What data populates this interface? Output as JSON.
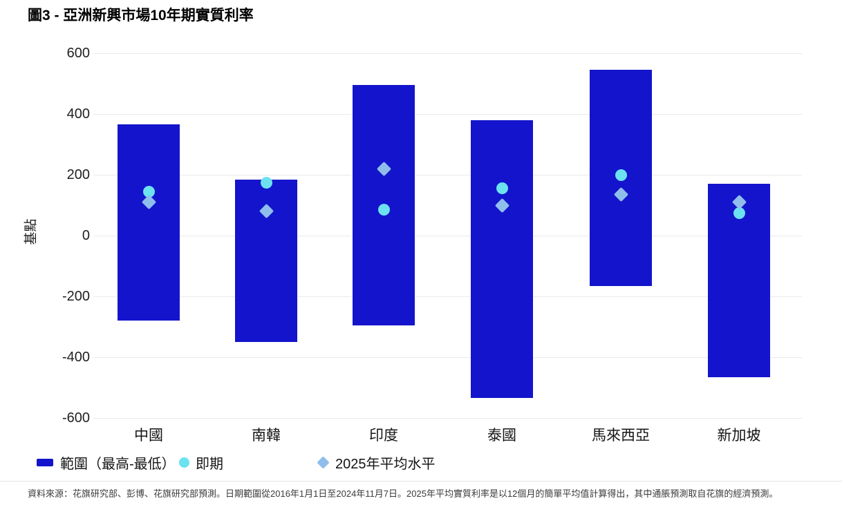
{
  "title": "圖3 - 亞洲新興市場10年期實質利率",
  "chart_data": {
    "type": "bar",
    "subtype": "floating-range-bars-with-point-markers",
    "title": "圖3 - 亞洲新興市場10年期實質利率",
    "ylabel": "基點",
    "ylim": [
      -600,
      600
    ],
    "yticks": [
      600,
      400,
      200,
      0,
      -200,
      -400,
      -600
    ],
    "grid": "horizontal",
    "legend_position": "bottom",
    "categories": [
      "中國",
      "南韓",
      "印度",
      "泰國",
      "馬來西亞",
      "新加坡"
    ],
    "series": [
      {
        "name": "範圍（最高-最低）",
        "marker": "bar",
        "high": [
          365,
          185,
          495,
          380,
          545,
          170
        ],
        "low": [
          -280,
          -350,
          -295,
          -535,
          -165,
          -465
        ]
      },
      {
        "name": "即期",
        "marker": "circle",
        "values": [
          145,
          175,
          85,
          155,
          200,
          75
        ]
      },
      {
        "name": "2025年平均水平",
        "marker": "diamond",
        "values": [
          110,
          80,
          220,
          100,
          135,
          110
        ]
      }
    ]
  },
  "legend": {
    "range_label": "範圍（最高-最低）",
    "spot_label": "即期",
    "avg_label": "2025年平均水平"
  },
  "colors": {
    "bar": "#1414cc",
    "spot": "#6ce1f0",
    "avg": "#8fbeec",
    "gridline": "#e9e9e9"
  },
  "footer": {
    "text": "資料來源：花旗研究部、彭博、花旗研究部預測。日期範圍從2016年1月1日至2024年11月7日。2025年平均實質利率是以12個月的簡單平均值計算得出，其中通脹預測取自花旗的經濟預測。"
  }
}
